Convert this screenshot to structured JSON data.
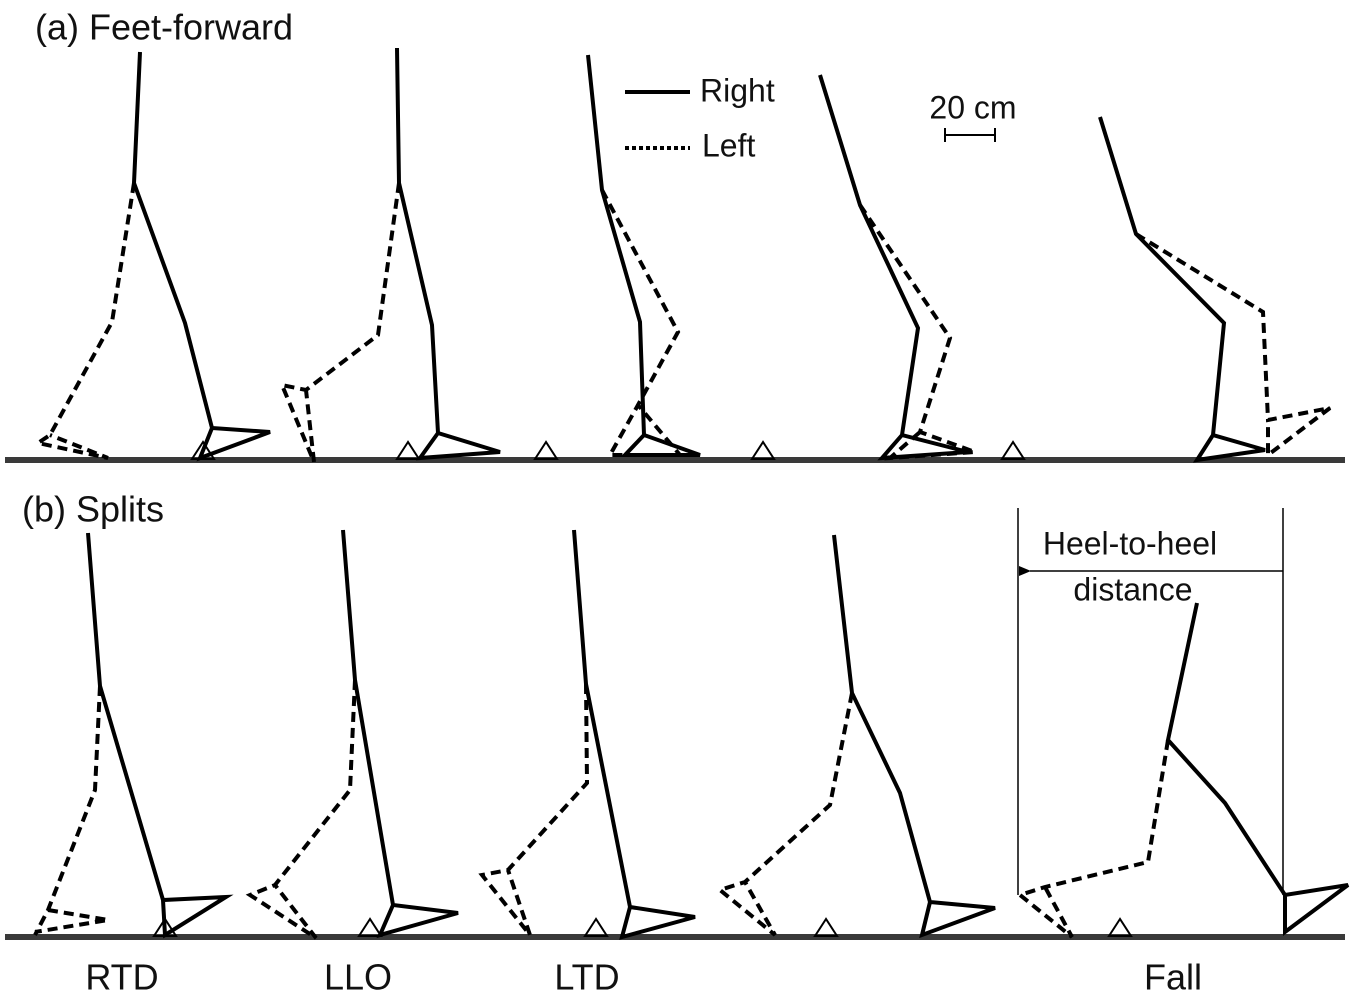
{
  "panels": [
    {
      "label": "(a) Feet-forward"
    },
    {
      "label": "(b) Splits"
    }
  ],
  "legend": {
    "items": [
      "Right",
      "Left"
    ]
  },
  "scale_bar": "20 cm",
  "annotation": {
    "lines": [
      "Heel-to-heel",
      "distance"
    ]
  },
  "events": [
    "RTD",
    "LLO",
    "LTD",
    "Fall"
  ]
}
